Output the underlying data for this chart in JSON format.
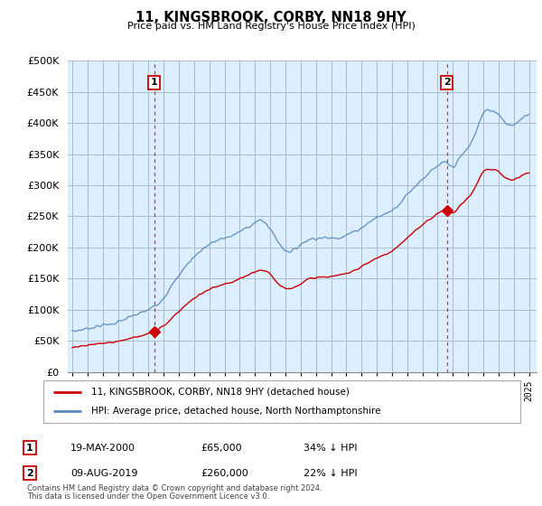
{
  "title": "11, KINGSBROOK, CORBY, NN18 9HY",
  "subtitle": "Price paid vs. HM Land Registry's House Price Index (HPI)",
  "x_start": 1994.7,
  "x_end": 2025.5,
  "y_min": 0,
  "y_max": 500000,
  "y_ticks": [
    0,
    50000,
    100000,
    150000,
    200000,
    250000,
    300000,
    350000,
    400000,
    450000,
    500000
  ],
  "sale1_x": 2000.38,
  "sale1_y": 65000,
  "sale1_label": "1",
  "sale2_x": 2019.6,
  "sale2_y": 260000,
  "sale2_label": "2",
  "red_color": "#cc0000",
  "blue_color": "#5588bb",
  "bg_fill": "#ddeeff",
  "legend_red": "11, KINGSBROOK, CORBY, NN18 9HY (detached house)",
  "legend_blue": "HPI: Average price, detached house, North Northamptonshire",
  "table_row1": [
    "1",
    "19-MAY-2000",
    "£65,000",
    "34% ↓ HPI"
  ],
  "table_row2": [
    "2",
    "09-AUG-2019",
    "£260,000",
    "22% ↓ HPI"
  ],
  "footnote1": "Contains HM Land Registry data © Crown copyright and database right 2024.",
  "footnote2": "This data is licensed under the Open Government Licence v3.0.",
  "background_color": "#ffffff",
  "grid_color": "#aabbcc",
  "x_ticks": [
    1995,
    1996,
    1997,
    1998,
    1999,
    2000,
    2001,
    2002,
    2003,
    2004,
    2005,
    2006,
    2007,
    2008,
    2009,
    2010,
    2011,
    2012,
    2013,
    2014,
    2015,
    2016,
    2017,
    2018,
    2019,
    2020,
    2021,
    2022,
    2023,
    2024,
    2025
  ]
}
